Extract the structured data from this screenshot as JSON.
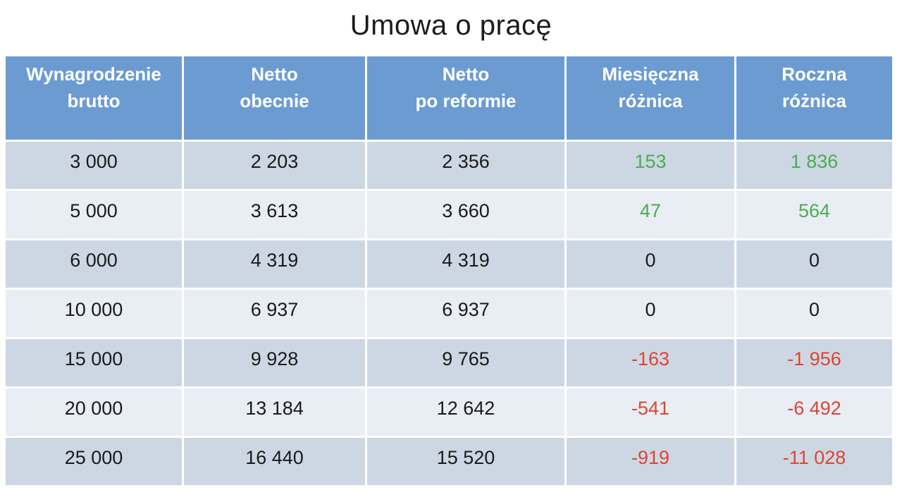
{
  "title": "Umowa o pracę",
  "colors": {
    "page-bg": "#ffffff",
    "header-bg": "#6c9bd2",
    "row-odd": "#cdd7e4",
    "row-even": "#e9edf4",
    "positive": "#4cac50",
    "negative": "#de4431",
    "text-dark": "#1a1a1a",
    "header-text": "#ffffff"
  },
  "table": {
    "headers": [
      "Wynagrodzenie\nbrutto",
      "Netto\nobecnie",
      "Netto\npo reformie",
      "Miesięczna\nróżnica",
      "Roczna\nróżnica"
    ],
    "rows": [
      {
        "brutto": "3 000",
        "netto_now": "2 203",
        "netto_reform": "2 356",
        "monthly_diff": "153",
        "yearly_diff": "1 836",
        "tone": "positive"
      },
      {
        "brutto": "5 000",
        "netto_now": "3 613",
        "netto_reform": "3 660",
        "monthly_diff": "47",
        "yearly_diff": "564",
        "tone": "positive"
      },
      {
        "brutto": "6 000",
        "netto_now": "4 319",
        "netto_reform": "4 319",
        "monthly_diff": "0",
        "yearly_diff": "0",
        "tone": "zero"
      },
      {
        "brutto": "10 000",
        "netto_now": "6 937",
        "netto_reform": "6 937",
        "monthly_diff": "0",
        "yearly_diff": "0",
        "tone": "zero"
      },
      {
        "brutto": "15 000",
        "netto_now": "9 928",
        "netto_reform": "9 765",
        "monthly_diff": "-163",
        "yearly_diff": "-1 956",
        "tone": "negative"
      },
      {
        "brutto": "20 000",
        "netto_now": "13 184",
        "netto_reform": "12 642",
        "monthly_diff": "-541",
        "yearly_diff": "-6 492",
        "tone": "negative"
      },
      {
        "brutto": "25 000",
        "netto_now": "16 440",
        "netto_reform": "15 520",
        "monthly_diff": "-919",
        "yearly_diff": "-11 028",
        "tone": "negative"
      }
    ]
  },
  "chart_data": {
    "type": "table",
    "title": "Umowa o pracę",
    "columns": [
      "Wynagrodzenie brutto",
      "Netto obecnie",
      "Netto po reformie",
      "Miesięczna różnica",
      "Roczna różnica"
    ],
    "rows": [
      [
        3000,
        2203,
        2356,
        153,
        1836
      ],
      [
        5000,
        3613,
        3660,
        47,
        564
      ],
      [
        6000,
        4319,
        4319,
        0,
        0
      ],
      [
        10000,
        6937,
        6937,
        0,
        0
      ],
      [
        15000,
        9928,
        9765,
        -163,
        -1956
      ],
      [
        20000,
        13184,
        12642,
        -541,
        -6492
      ],
      [
        25000,
        16440,
        15520,
        -919,
        -11028
      ]
    ],
    "legend": "green = gain after reform, red = loss after reform, black 0 = no change"
  }
}
